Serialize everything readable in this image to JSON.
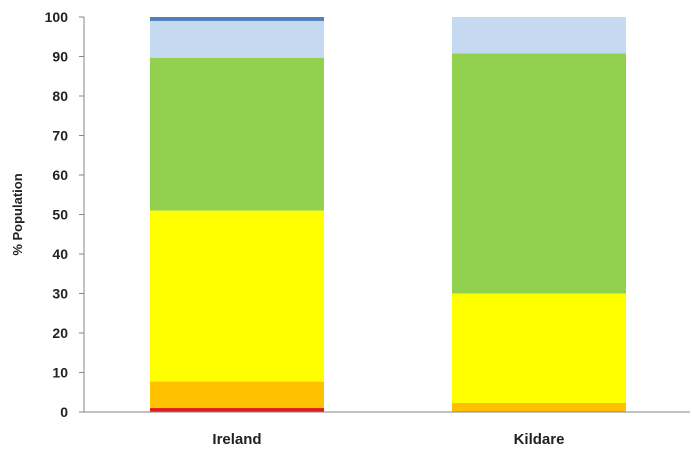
{
  "chart_data": {
    "type": "bar",
    "stacked": true,
    "categories": [
      "Ireland",
      "Kildare"
    ],
    "ylabel": "% Population",
    "xlabel": "",
    "title": "",
    "ylim": [
      0,
      100
    ],
    "yticks": [
      0,
      10,
      20,
      30,
      40,
      50,
      60,
      70,
      80,
      90,
      100
    ],
    "grid": false,
    "legend": "none",
    "series": [
      {
        "color": "#e31a1c",
        "values": [
          1.0,
          0.0
        ]
      },
      {
        "color": "#ffc000",
        "values": [
          6.7,
          2.3
        ]
      },
      {
        "color": "#ffff00",
        "values": [
          43.3,
          27.7
        ]
      },
      {
        "color": "#92d050",
        "values": [
          38.7,
          60.8
        ]
      },
      {
        "color": "#c5d9f1",
        "values": [
          9.3,
          9.2
        ]
      },
      {
        "color": "#4f81bd",
        "values": [
          1.0,
          0.0
        ]
      }
    ]
  }
}
